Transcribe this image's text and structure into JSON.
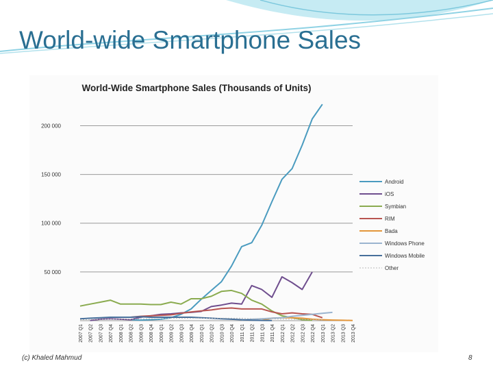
{
  "slide": {
    "title": "World-wide Smartphone Sales",
    "footer_left": "(c) Khaled Mahmud",
    "page_number": "8"
  },
  "colors": {
    "title": "#2a6f92",
    "banner": "#8fd2e4"
  },
  "chart_data": {
    "type": "line",
    "title": "World-Wide Smartphone Sales (Thousands of Units)",
    "xlabel": "",
    "ylabel": "",
    "ylim": [
      0,
      220000
    ],
    "yticks": [
      50000,
      100000,
      150000,
      200000
    ],
    "ytick_labels": [
      "50 000",
      "100 000",
      "150 000",
      "200 000"
    ],
    "grid": true,
    "legend": "right",
    "categories": [
      "2007 Q1",
      "2007 Q2",
      "2007 Q3",
      "2007 Q4",
      "2008 Q1",
      "2008 Q2",
      "2008 Q3",
      "2008 Q4",
      "2009 Q1",
      "2009 Q2",
      "2009 Q3",
      "2009 Q4",
      "2010 Q1",
      "2010 Q2",
      "2010 Q3",
      "2010 Q4",
      "2011 Q1",
      "2011 Q2",
      "2011 Q3",
      "2011 Q4",
      "2012 Q1",
      "2012 Q2",
      "2012 Q3",
      "2012 Q4",
      "2013 Q1",
      "2013 Q2",
      "2013 Q3",
      "2013 Q4"
    ],
    "series": [
      {
        "name": "Android",
        "color": "#4a9bbf",
        "values": [
          null,
          null,
          null,
          null,
          null,
          1000,
          500,
          1000,
          1500,
          3000,
          6500,
          12000,
          22000,
          31000,
          40000,
          56000,
          76000,
          80000,
          98000,
          122000,
          145000,
          156000,
          180000,
          207000,
          222000,
          null,
          null,
          null
        ]
      },
      {
        "name": "iOS",
        "color": "#6f4e8e",
        "values": [
          null,
          200,
          1500,
          2000,
          1500,
          1000,
          3500,
          5000,
          6500,
          7000,
          8000,
          8500,
          9500,
          14500,
          16000,
          18000,
          17000,
          36000,
          32000,
          24000,
          45000,
          39000,
          32000,
          50000,
          null,
          null,
          null,
          null
        ]
      },
      {
        "name": "Symbian",
        "color": "#8aab4f",
        "values": [
          15000,
          17000,
          19000,
          21000,
          17000,
          17000,
          17000,
          16500,
          16500,
          19000,
          17000,
          22500,
          22500,
          25000,
          30000,
          31000,
          28000,
          21000,
          17000,
          10000,
          5000,
          3000,
          1000,
          400,
          null,
          null,
          null,
          null
        ]
      },
      {
        "name": "RIM",
        "color": "#b85450",
        "values": [
          null,
          null,
          null,
          null,
          null,
          3500,
          4500,
          5000,
          5500,
          6000,
          7500,
          9000,
          10000,
          11000,
          12500,
          13000,
          12000,
          12000,
          12000,
          9000,
          7000,
          8000,
          7000,
          6500,
          3000,
          null,
          null,
          null
        ]
      },
      {
        "name": "Bada",
        "color": "#e3963a",
        "values": [
          null,
          null,
          null,
          null,
          null,
          null,
          null,
          null,
          null,
          null,
          null,
          null,
          null,
          null,
          null,
          null,
          null,
          null,
          200,
          2500,
          3000,
          3000,
          2500,
          1500,
          1000,
          600,
          400,
          200
        ]
      },
      {
        "name": "Windows Phone",
        "color": "#9ab4cf",
        "values": [
          null,
          null,
          null,
          null,
          null,
          null,
          null,
          null,
          null,
          null,
          null,
          null,
          null,
          null,
          null,
          null,
          500,
          1500,
          2000,
          2500,
          3000,
          4500,
          5500,
          6500,
          7500,
          8500,
          null,
          null
        ]
      },
      {
        "name": "Windows Mobile",
        "color": "#466f9b",
        "values": [
          2000,
          2500,
          3000,
          3500,
          3500,
          3500,
          4000,
          3500,
          3500,
          3500,
          3500,
          3500,
          3000,
          2500,
          2000,
          1500,
          1000,
          500,
          300,
          200,
          null,
          null,
          null,
          null,
          null,
          null,
          null,
          null
        ]
      },
      {
        "name": "Other",
        "color": "#b8b8b8",
        "values": [
          1000,
          1200,
          1500,
          1500,
          1500,
          1500,
          2000,
          2000,
          2000,
          2500,
          2500,
          2500,
          2500,
          2500,
          2500,
          2500,
          2500,
          2000,
          2000,
          2000,
          1500,
          1500,
          1500,
          1000,
          1000,
          null,
          null,
          null
        ]
      }
    ]
  }
}
